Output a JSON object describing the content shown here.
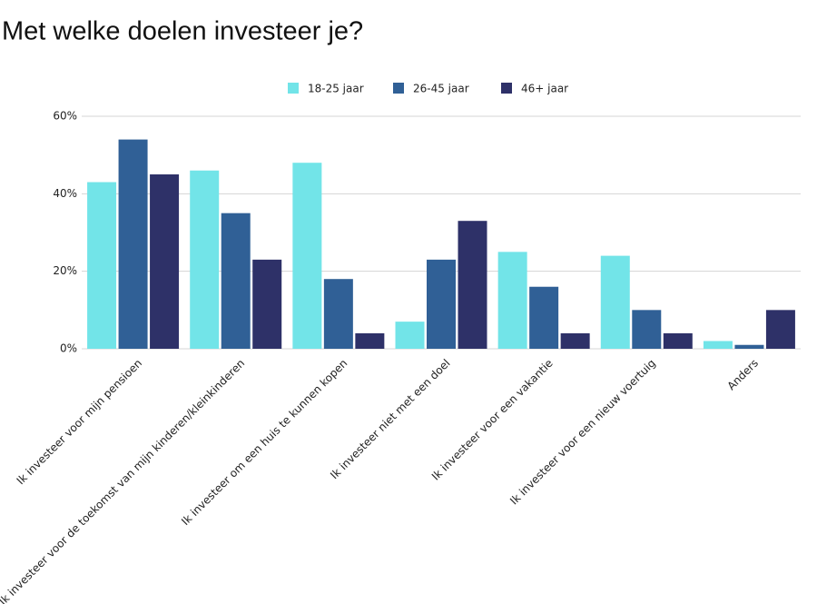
{
  "chart_data": {
    "type": "bar",
    "title": "Met welke doelen investeer je?",
    "categories": [
      "Ik investeer voor mijn pensioen",
      "Ik investeer voor de toekomst van mijn kinderen/kleinkinderen",
      "Ik investeer om een huis te kunnen kopen",
      "Ik investeer niet met een doel",
      "Ik investeer voor een vakantie",
      "Ik investeer voor een nieuw voertuig",
      "Anders"
    ],
    "series": [
      {
        "name": "18-25 jaar",
        "color": "#72e4e8",
        "values": [
          43,
          46,
          48,
          7,
          25,
          24,
          2
        ]
      },
      {
        "name": "26-45 jaar",
        "color": "#306096",
        "values": [
          54,
          35,
          18,
          23,
          16,
          10,
          1
        ]
      },
      {
        "name": "46+ jaar",
        "color": "#2e3168",
        "values": [
          45,
          23,
          4,
          33,
          4,
          4,
          10
        ]
      }
    ],
    "ylim": [
      0,
      60
    ],
    "yticks": [
      {
        "value": 0,
        "label": "0%"
      },
      {
        "value": 20,
        "label": "20%"
      },
      {
        "value": 40,
        "label": "40%"
      },
      {
        "value": 60,
        "label": "60%"
      }
    ],
    "grid": true,
    "legend": "top"
  }
}
